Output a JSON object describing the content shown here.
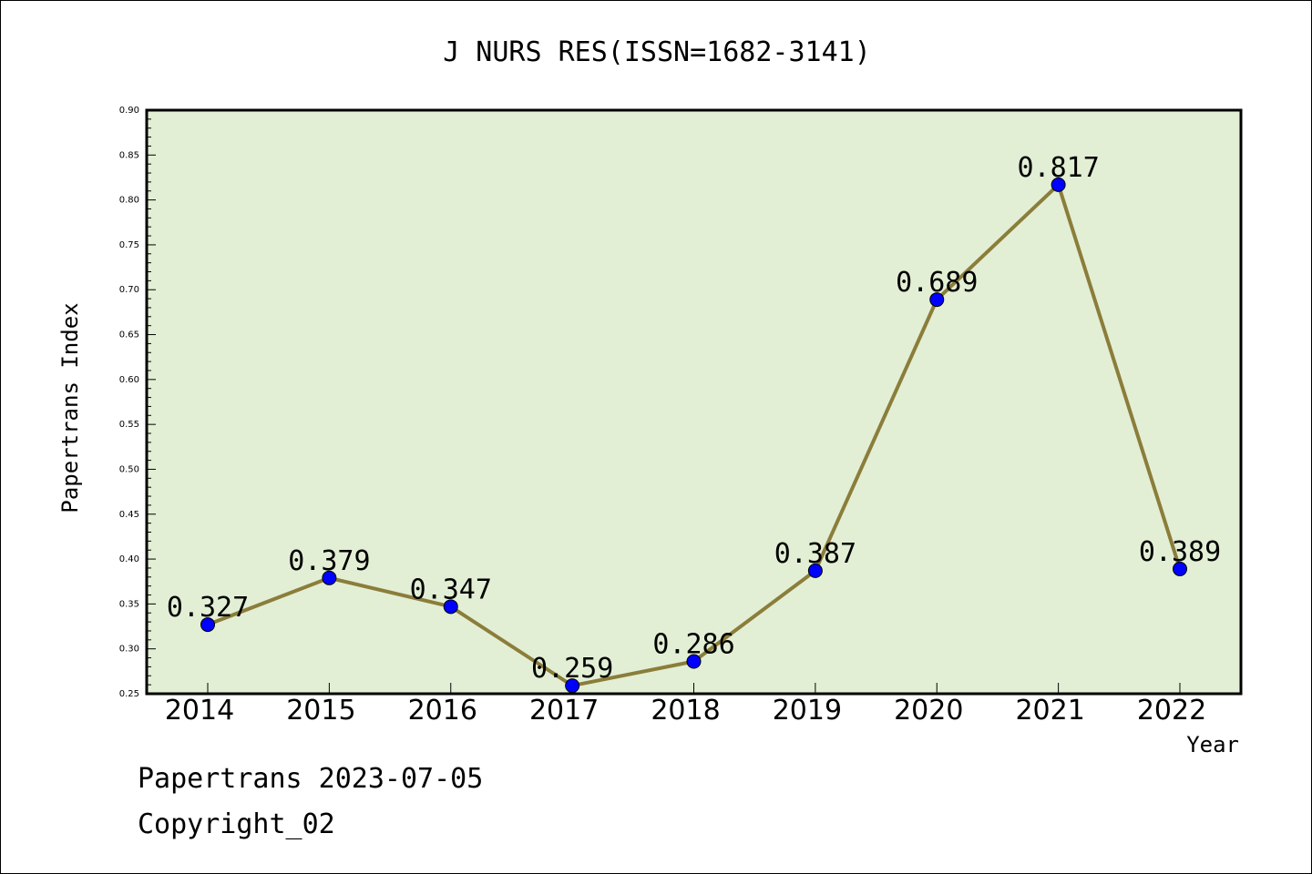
{
  "chart_data": {
    "type": "line",
    "title": "J NURS RES(ISSN=1682-3141)",
    "xlabel": "Year",
    "ylabel": "Papertrans Index",
    "categories": [
      "2014",
      "2015",
      "2016",
      "2017",
      "2018",
      "2019",
      "2020",
      "2021",
      "2022"
    ],
    "series": [
      {
        "values": [
          0.327,
          0.379,
          0.347,
          0.259,
          0.286,
          0.387,
          0.689,
          0.817,
          0.389
        ],
        "data_labels": [
          "0.327",
          "0.379",
          "0.347",
          "0.259",
          "0.286",
          "0.387",
          "0.689",
          "0.817",
          "0.389"
        ]
      }
    ],
    "ylim": [
      0.25,
      0.9
    ],
    "yticks": [
      "0.25",
      "0.30",
      "0.35",
      "0.40",
      "0.45",
      "0.50",
      "0.55",
      "0.60",
      "0.65",
      "0.70",
      "0.75",
      "0.80",
      "0.85",
      "0.90"
    ],
    "grid": false,
    "legend": "none",
    "colors": {
      "plot_background": "#e2efd5",
      "line": "#8b7d3a",
      "marker": "#0000ff",
      "axis": "#000000"
    }
  },
  "footer": {
    "line1": "Papertrans 2023-07-05",
    "line2": "Copyright_02"
  }
}
